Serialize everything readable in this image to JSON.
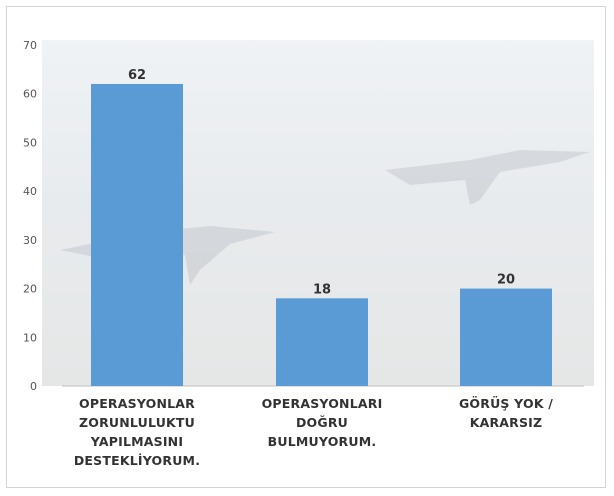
{
  "chart_data": {
    "type": "bar",
    "categories": [
      [
        "OPERASYONLAR",
        "ZORUNLULUKTU",
        "YAPILMASINI",
        "DESTEKLİYORUM."
      ],
      [
        "OPERASYONLARI DOĞRU",
        "BULMUYORUM."
      ],
      [
        "GÖRÜŞ YOK / KARARSIZ"
      ]
    ],
    "values": [
      62,
      18,
      20
    ],
    "ylim": [
      0,
      70
    ],
    "yticks": [
      0,
      10,
      20,
      30,
      40,
      50,
      60,
      70
    ],
    "title": "",
    "xlabel": "",
    "ylabel": "",
    "grid": false,
    "legend": "none",
    "bar_color": "#5b9bd5"
  }
}
